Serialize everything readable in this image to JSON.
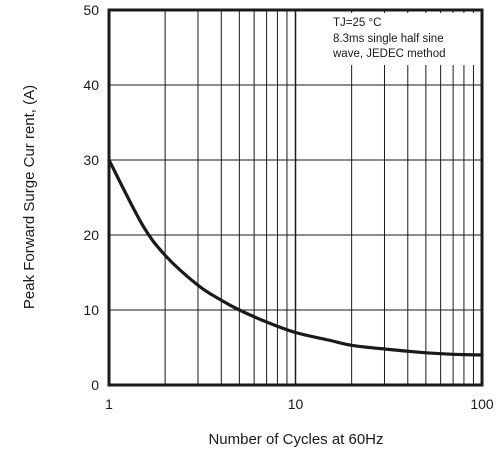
{
  "chart_data": {
    "type": "line",
    "xlabel": "Number of Cycles at 60Hz",
    "ylabel": "Peak Forward Surge Cur rent, (A)",
    "x_scale": "log",
    "xlim": [
      1,
      100
    ],
    "ylim": [
      0,
      50
    ],
    "x_ticks": [
      "1",
      "10",
      "100"
    ],
    "y_ticks": [
      "0",
      "10",
      "20",
      "30",
      "40",
      "50"
    ],
    "grid": true,
    "annotation": {
      "line1": "TJ=25 °C",
      "line2": "8.3ms single half sine",
      "line3": "wave, JEDEC method"
    },
    "series": [
      {
        "x": [
          1,
          1.5,
          2,
          3,
          4,
          5,
          7,
          10,
          15,
          20,
          30,
          50,
          70,
          100
        ],
        "y": [
          30,
          21.5,
          17.3,
          13.3,
          11.3,
          10.0,
          8.4,
          7.0,
          6.0,
          5.3,
          4.8,
          4.3,
          4.1,
          4.0
        ]
      }
    ],
    "colors": {
      "line": "#1a1a1a",
      "grid": "#1a1a1a"
    }
  }
}
